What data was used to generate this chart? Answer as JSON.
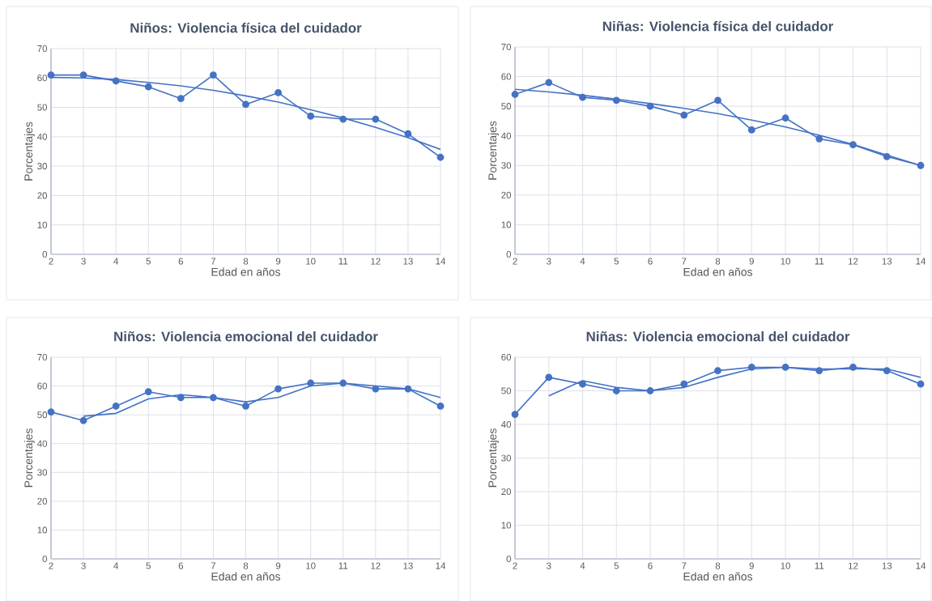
{
  "chart_data": [
    {
      "type": "line",
      "title": "Niños: Violencia física del cuidador",
      "xlabel": "Edad en años",
      "ylabel": "Porcentajes",
      "xlim": [
        2,
        14
      ],
      "ylim": [
        0,
        70
      ],
      "xticks": [
        2,
        3,
        4,
        5,
        6,
        7,
        8,
        9,
        10,
        11,
        12,
        13,
        14
      ],
      "yticks": [
        0,
        10,
        20,
        30,
        40,
        50,
        60,
        70
      ],
      "grid": true,
      "series": [
        {
          "marker": "circle",
          "color": "#4472c4",
          "x": [
            2,
            3,
            4,
            5,
            6,
            7,
            8,
            9,
            10,
            11,
            12,
            13,
            14
          ],
          "values": [
            61,
            61,
            59,
            57,
            53,
            61,
            51,
            55,
            47,
            46,
            46,
            41,
            33
          ]
        },
        {
          "marker": "none",
          "color": "#4472c4",
          "x": [
            2,
            3,
            4,
            5,
            6,
            7,
            8,
            9,
            10,
            11,
            12,
            13,
            14
          ],
          "values": [
            60.2,
            60,
            59.5,
            58.5,
            57.3,
            55.8,
            53.9,
            51.8,
            49.2,
            46.4,
            43.2,
            39.7,
            35.7
          ]
        }
      ]
    },
    {
      "type": "line",
      "title": "Niñas: Violencia física del cuidador",
      "xlabel": "Edad en años",
      "ylabel": "Porcentajes",
      "xlim": [
        2,
        14
      ],
      "ylim": [
        0,
        70
      ],
      "xticks": [
        2,
        3,
        4,
        5,
        6,
        7,
        8,
        9,
        10,
        11,
        12,
        13,
        14
      ],
      "yticks": [
        0,
        10,
        20,
        30,
        40,
        50,
        60,
        70
      ],
      "grid": true,
      "series": [
        {
          "marker": "circle",
          "color": "#4472c4",
          "x": [
            2,
            3,
            4,
            5,
            6,
            7,
            8,
            9,
            10,
            11,
            12,
            13,
            14
          ],
          "values": [
            54,
            58,
            53,
            52,
            50,
            47,
            52,
            42,
            46,
            39,
            37,
            33,
            30
          ]
        },
        {
          "marker": "none",
          "color": "#4472c4",
          "x": [
            2,
            3,
            4,
            5,
            6,
            7,
            8,
            9,
            10,
            11,
            12,
            13,
            14
          ],
          "values": [
            55.7,
            54.8,
            53.7,
            52.4,
            50.9,
            49.3,
            47.5,
            45.3,
            43,
            40.2,
            37.1,
            33.5,
            30
          ]
        }
      ]
    },
    {
      "type": "line",
      "title": "Niños: Violencia emocional del cuidador",
      "xlabel": "Edad en años",
      "ylabel": "Porcentajes",
      "xlim": [
        2,
        14
      ],
      "ylim": [
        0,
        70
      ],
      "xticks": [
        2,
        3,
        4,
        5,
        6,
        7,
        8,
        9,
        10,
        11,
        12,
        13,
        14
      ],
      "yticks": [
        0,
        10,
        20,
        30,
        40,
        50,
        60,
        70
      ],
      "grid": true,
      "series": [
        {
          "marker": "circle",
          "color": "#4472c4",
          "x": [
            2,
            3,
            4,
            5,
            6,
            7,
            8,
            9,
            10,
            11,
            12,
            13,
            14
          ],
          "values": [
            51,
            48,
            53,
            58,
            56,
            56,
            53,
            59,
            61,
            61,
            59,
            59,
            53
          ]
        },
        {
          "marker": "none",
          "color": "#4472c4",
          "x": [
            3,
            4,
            5,
            6,
            7,
            8,
            9,
            10,
            11,
            12,
            13,
            14
          ],
          "values": [
            49.5,
            50.5,
            55.5,
            57,
            56,
            54.5,
            56,
            60,
            61,
            60,
            59,
            56
          ]
        }
      ]
    },
    {
      "type": "line",
      "title": "Niñas: Violencia emocional del cuidador",
      "xlabel": "Edad en años",
      "ylabel": "Porcentajes",
      "xlim": [
        2,
        14
      ],
      "ylim": [
        0,
        60
      ],
      "xticks": [
        2,
        3,
        4,
        5,
        6,
        7,
        8,
        9,
        10,
        11,
        12,
        13,
        14
      ],
      "yticks": [
        0,
        10,
        20,
        30,
        40,
        50,
        60
      ],
      "grid": true,
      "series": [
        {
          "marker": "circle",
          "color": "#4472c4",
          "x": [
            2,
            3,
            4,
            5,
            6,
            7,
            8,
            9,
            10,
            11,
            12,
            13,
            14
          ],
          "values": [
            43,
            54,
            52,
            50,
            50,
            52,
            56,
            57,
            57,
            56,
            57,
            56,
            52
          ]
        },
        {
          "marker": "none",
          "color": "#4472c4",
          "x": [
            3,
            4,
            5,
            6,
            7,
            8,
            9,
            10,
            11,
            12,
            13,
            14
          ],
          "values": [
            48.5,
            53,
            51,
            50,
            51,
            54,
            56.5,
            57,
            56.5,
            56.5,
            56.5,
            54
          ]
        }
      ]
    }
  ]
}
